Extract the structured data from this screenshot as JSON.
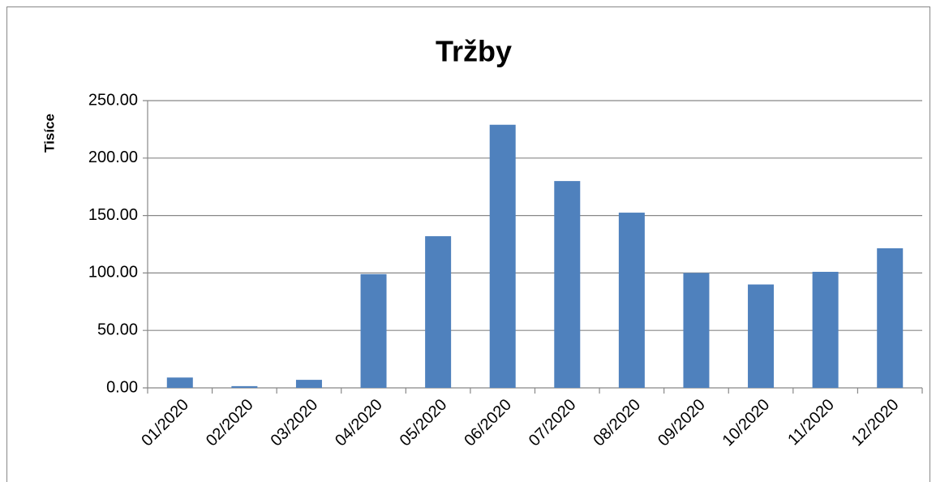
{
  "chart_data": {
    "type": "bar",
    "title": "Tržby",
    "y_label": "Tisíce",
    "categories": [
      "01/2020",
      "02/2020",
      "03/2020",
      "04/2020",
      "05/2020",
      "06/2020",
      "07/2020",
      "08/2020",
      "09/2020",
      "10/2020",
      "11/2020",
      "12/2020"
    ],
    "values": [
      9,
      1.5,
      7,
      99,
      132,
      229,
      180,
      152.5,
      100,
      90,
      101,
      121.5
    ],
    "color": "#4f81bd",
    "ylim": [
      0,
      250
    ],
    "yticks": [
      {
        "value": 0,
        "label": "0.00"
      },
      {
        "value": 50,
        "label": "50.00"
      },
      {
        "value": 100,
        "label": "100.00"
      },
      {
        "value": 150,
        "label": "150.00"
      },
      {
        "value": 200,
        "label": "200.00"
      },
      {
        "value": 250,
        "label": "250.00"
      }
    ],
    "grid": true
  }
}
